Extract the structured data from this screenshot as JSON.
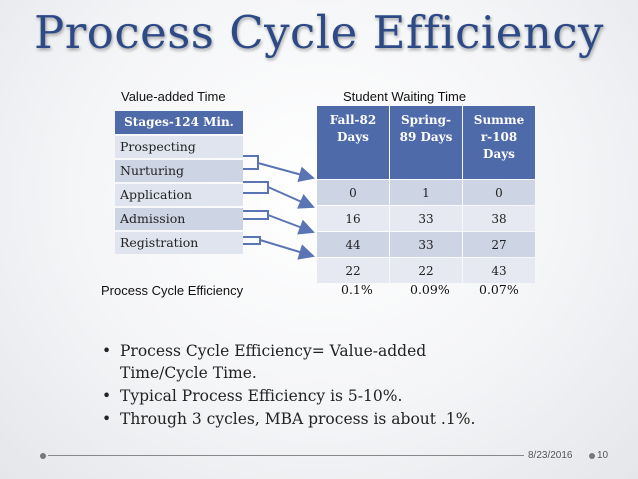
{
  "title": "Process Cycle Efficiency",
  "labels": {
    "value_added": "Value-added Time",
    "student_waiting": "Student Waiting Time",
    "pce": "Process Cycle Efficiency"
  },
  "stages": {
    "header": "Stages-124 Min.",
    "items": [
      "Prospecting",
      "Nurturing",
      "Application",
      "Admission",
      "Registration"
    ]
  },
  "waiting_table": {
    "headers": [
      [
        "Fall-82",
        "Days"
      ],
      [
        "Spring-",
        "89 Days"
      ],
      [
        "Summe",
        "r-108",
        "Days"
      ]
    ],
    "rows": [
      [
        "0",
        "1",
        "0"
      ],
      [
        "16",
        "33",
        "38"
      ],
      [
        "44",
        "33",
        "27"
      ],
      [
        "22",
        "22",
        "43"
      ]
    ]
  },
  "pce_values": [
    "0.1%",
    "0.09%",
    "0.07%"
  ],
  "bullets": [
    [
      "Process Cycle Efficiency= Value-added",
      "Time/Cycle Time."
    ],
    [
      "Typical Process Efficiency is 5-10%."
    ],
    [
      "Through 3 cycles, MBA process is about .1%."
    ]
  ],
  "footer": {
    "date": "8/23/2016",
    "page": "10"
  },
  "colors": {
    "title": "#2e4a86",
    "table_header": "#4f6aa9",
    "arrow": "#5b74b3"
  }
}
